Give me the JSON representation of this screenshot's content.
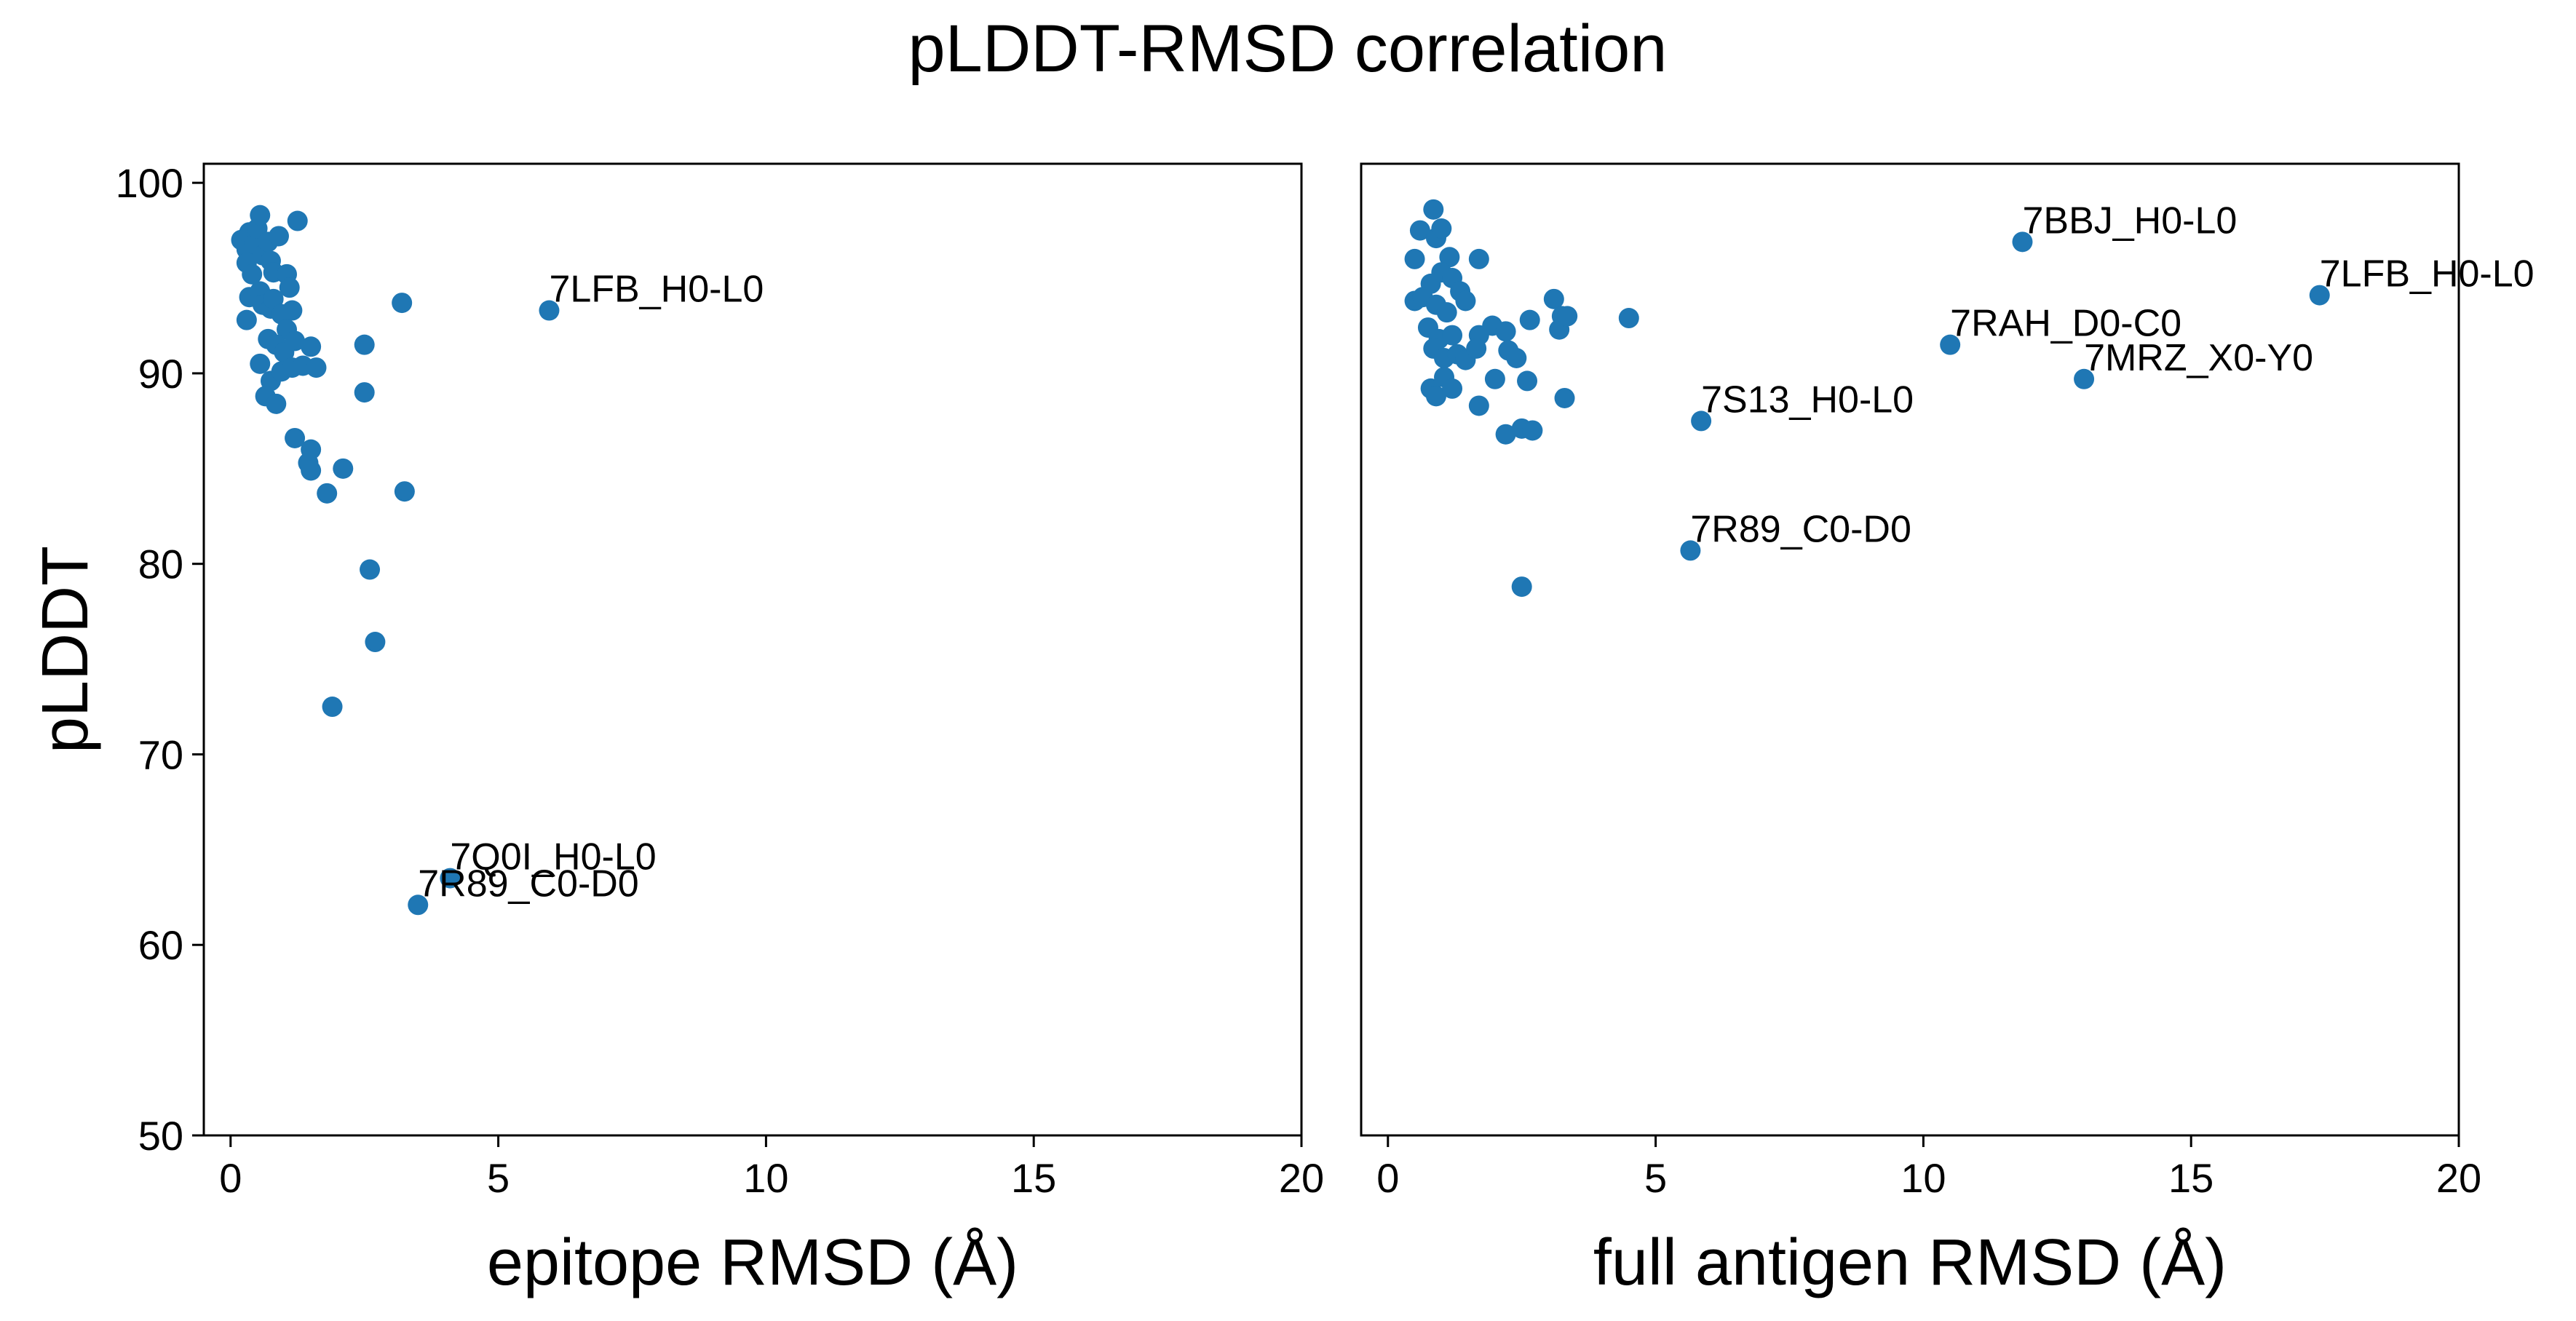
{
  "figure": {
    "title": "pLDDT-RMSD correlation"
  },
  "chart_data": [
    {
      "type": "scatter",
      "xlabel": "epitope RMSD (Å)",
      "ylabel": "pLDDT",
      "xlim": [
        -0.5,
        20
      ],
      "ylim": [
        50,
        101
      ],
      "xticks": [
        "0",
        "5",
        "10",
        "15",
        "20"
      ],
      "yticks": [
        "50",
        "60",
        "70",
        "80",
        "90",
        "100"
      ],
      "color": "#1f77b4",
      "grid": false,
      "points": [
        [
          0.2,
          97.0
        ],
        [
          0.3,
          96.5
        ],
        [
          0.35,
          97.4
        ],
        [
          0.3,
          95.8
        ],
        [
          0.45,
          96.8
        ],
        [
          0.5,
          97.6
        ],
        [
          0.55,
          98.3
        ],
        [
          0.6,
          96.2
        ],
        [
          0.4,
          95.2
        ],
        [
          0.7,
          96.9
        ],
        [
          0.75,
          95.9
        ],
        [
          0.8,
          95.3
        ],
        [
          0.9,
          97.2
        ],
        [
          1.05,
          95.2
        ],
        [
          1.1,
          94.5
        ],
        [
          0.3,
          92.8
        ],
        [
          0.35,
          94.0
        ],
        [
          0.55,
          94.3
        ],
        [
          0.6,
          93.6
        ],
        [
          0.75,
          93.4
        ],
        [
          0.8,
          93.9
        ],
        [
          0.95,
          93.1
        ],
        [
          1.05,
          92.3
        ],
        [
          1.15,
          93.3
        ],
        [
          0.7,
          91.8
        ],
        [
          0.85,
          91.5
        ],
        [
          1.0,
          91.1
        ],
        [
          1.2,
          91.7
        ],
        [
          1.5,
          91.4
        ],
        [
          0.55,
          90.5
        ],
        [
          0.75,
          89.6
        ],
        [
          0.95,
          90.1
        ],
        [
          1.15,
          90.3
        ],
        [
          1.35,
          90.4
        ],
        [
          1.6,
          90.3
        ],
        [
          0.65,
          88.8
        ],
        [
          0.85,
          88.4
        ],
        [
          1.25,
          98.0
        ],
        [
          1.2,
          86.6
        ],
        [
          1.5,
          86.0
        ],
        [
          1.45,
          85.3
        ],
        [
          1.5,
          84.9
        ],
        [
          1.8,
          83.7
        ],
        [
          2.1,
          85.0
        ],
        [
          2.5,
          91.5
        ],
        [
          2.5,
          89.0
        ],
        [
          2.6,
          79.7
        ],
        [
          2.7,
          75.9
        ],
        [
          3.2,
          93.7
        ],
        [
          3.25,
          83.8
        ],
        [
          1.9,
          72.5
        ],
        [
          5.95,
          93.3
        ],
        [
          4.1,
          63.5
        ],
        [
          3.5,
          62.1
        ]
      ],
      "annotations": [
        {
          "text": "7LFB_H0-L0",
          "x": 5.95,
          "y": 93.3
        },
        {
          "text": "7Q0I_H0-L0",
          "x": 4.1,
          "y": 63.5
        },
        {
          "text": "7R89_C0-D0",
          "x": 3.5,
          "y": 62.1
        }
      ]
    },
    {
      "type": "scatter",
      "xlabel": "full antigen RMSD (Å)",
      "ylabel": "",
      "xlim": [
        -0.5,
        20
      ],
      "ylim": [
        50,
        101
      ],
      "xticks": [
        "0",
        "5",
        "10",
        "15",
        "20"
      ],
      "yticks": [],
      "color": "#1f77b4",
      "grid": false,
      "points": [
        [
          0.6,
          97.5
        ],
        [
          0.85,
          98.6
        ],
        [
          0.9,
          97.1
        ],
        [
          1.0,
          97.6
        ],
        [
          0.5,
          96.0
        ],
        [
          1.15,
          96.1
        ],
        [
          1.7,
          96.0
        ],
        [
          0.8,
          94.7
        ],
        [
          1.0,
          95.3
        ],
        [
          1.2,
          95.0
        ],
        [
          1.35,
          94.3
        ],
        [
          0.5,
          93.8
        ],
        [
          0.65,
          94.0
        ],
        [
          0.9,
          93.6
        ],
        [
          1.1,
          93.2
        ],
        [
          1.45,
          93.8
        ],
        [
          0.75,
          92.4
        ],
        [
          0.95,
          91.8
        ],
        [
          1.2,
          92.0
        ],
        [
          1.7,
          92.0
        ],
        [
          1.95,
          92.5
        ],
        [
          2.2,
          92.2
        ],
        [
          2.25,
          91.2
        ],
        [
          2.4,
          90.8
        ],
        [
          0.85,
          91.3
        ],
        [
          1.05,
          90.8
        ],
        [
          1.3,
          91.0
        ],
        [
          1.45,
          90.7
        ],
        [
          1.65,
          91.3
        ],
        [
          0.8,
          89.2
        ],
        [
          0.9,
          88.8
        ],
        [
          1.05,
          89.8
        ],
        [
          1.2,
          89.2
        ],
        [
          1.7,
          88.3
        ],
        [
          2.0,
          89.7
        ],
        [
          2.6,
          89.6
        ],
        [
          2.2,
          86.8
        ],
        [
          2.5,
          87.1
        ],
        [
          2.7,
          87.0
        ],
        [
          2.65,
          92.8
        ],
        [
          3.1,
          93.9
        ],
        [
          3.2,
          92.3
        ],
        [
          3.25,
          93.0
        ],
        [
          3.35,
          93.0
        ],
        [
          3.3,
          88.7
        ],
        [
          4.5,
          92.9
        ],
        [
          2.5,
          78.8
        ],
        [
          5.85,
          87.5
        ],
        [
          5.65,
          80.7
        ],
        [
          10.5,
          91.5
        ],
        [
          11.85,
          96.9
        ],
        [
          13.0,
          89.7
        ],
        [
          17.4,
          94.1
        ]
      ],
      "annotations": [
        {
          "text": "7BBJ_H0-L0",
          "x": 11.85,
          "y": 96.9
        },
        {
          "text": "7LFB_H0-L0",
          "x": 17.4,
          "y": 94.1
        },
        {
          "text": "7RAH_D0-C0",
          "x": 10.5,
          "y": 91.5
        },
        {
          "text": "7MRZ_X0-Y0",
          "x": 13.0,
          "y": 89.7
        },
        {
          "text": "7S13_H0-L0",
          "x": 5.85,
          "y": 87.5
        },
        {
          "text": "7R89_C0-D0",
          "x": 5.65,
          "y": 80.7
        }
      ]
    }
  ]
}
